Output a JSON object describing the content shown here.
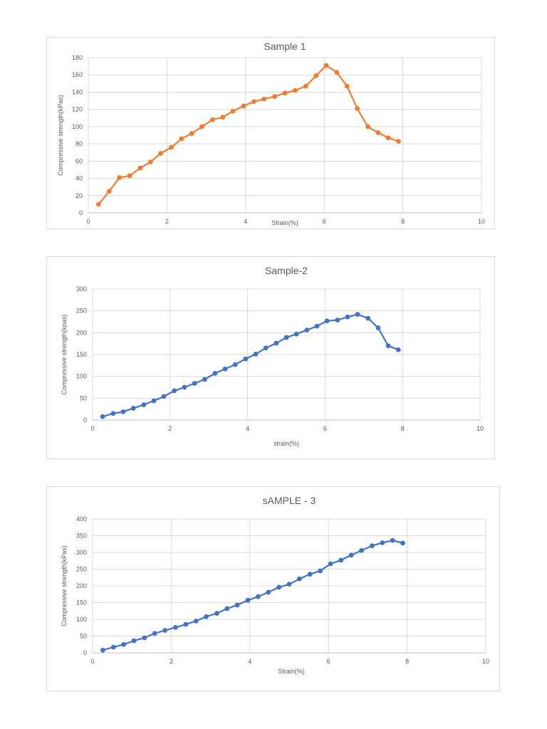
{
  "chart_data": [
    {
      "type": "line",
      "title": "Sample 1",
      "xlabel": "Strain(%)",
      "ylabel": "Compressive strength(kPas)",
      "xlim": [
        0,
        10
      ],
      "ylim": [
        0,
        180
      ],
      "xticks": [
        "0",
        "2",
        "4",
        "6",
        "8",
        "10"
      ],
      "yticks": [
        "0",
        "20",
        "40",
        "60",
        "80",
        "100",
        "120",
        "140",
        "160",
        "180"
      ],
      "grid": true,
      "color": "#ED7D31",
      "series": [
        {
          "x": [
            0.26,
            0.53,
            0.79,
            1.05,
            1.32,
            1.58,
            1.84,
            2.11,
            2.37,
            2.63,
            2.89,
            3.16,
            3.42,
            3.68,
            3.95,
            4.21,
            4.47,
            4.74,
            5.0,
            5.26,
            5.53,
            5.79,
            6.05,
            6.32,
            6.58,
            6.84,
            7.11,
            7.37,
            7.63,
            7.89
          ],
          "values": [
            10,
            25,
            41,
            43,
            52,
            59,
            69,
            76,
            86,
            92,
            100,
            108,
            111,
            118,
            124,
            129,
            132,
            135,
            139,
            142,
            147,
            159,
            171,
            163,
            147,
            121,
            100,
            93,
            87,
            83
          ]
        }
      ]
    },
    {
      "type": "line",
      "title": "Sample-2",
      "xlabel": "strain(%)",
      "ylabel": "Compressive strength(kpas)",
      "xlim": [
        0,
        10
      ],
      "ylim": [
        0,
        300
      ],
      "xticks": [
        "0",
        "2",
        "4",
        "6",
        "8",
        "10"
      ],
      "yticks": [
        "0",
        "50",
        "100",
        "150",
        "200",
        "250",
        "300"
      ],
      "grid": true,
      "color": "#4472C4",
      "series": [
        {
          "x": [
            0.26,
            0.53,
            0.79,
            1.05,
            1.32,
            1.58,
            1.84,
            2.11,
            2.37,
            2.63,
            2.89,
            3.16,
            3.42,
            3.68,
            3.95,
            4.21,
            4.47,
            4.74,
            5.0,
            5.26,
            5.53,
            5.79,
            6.05,
            6.32,
            6.58,
            6.84,
            7.11,
            7.37,
            7.63,
            7.89
          ],
          "values": [
            8,
            15,
            19,
            27,
            35,
            44,
            54,
            67,
            75,
            84,
            93,
            107,
            117,
            127,
            140,
            151,
            165,
            176,
            189,
            197,
            206,
            215,
            227,
            229,
            236,
            242,
            233,
            211,
            170,
            161
          ]
        }
      ]
    },
    {
      "type": "line",
      "title": "sAMPLE - 3",
      "xlabel": "Strain(%)",
      "ylabel": "Compressive strength(kPas)",
      "xlim": [
        0,
        10
      ],
      "ylim": [
        0,
        400
      ],
      "xticks": [
        "0",
        "2",
        "4",
        "6",
        "8",
        "10"
      ],
      "yticks": [
        "0",
        "50",
        "100",
        "150",
        "200",
        "250",
        "300",
        "350",
        "400"
      ],
      "grid": true,
      "color": "#4472C4",
      "series": [
        {
          "x": [
            0.26,
            0.53,
            0.79,
            1.05,
            1.32,
            1.58,
            1.84,
            2.11,
            2.37,
            2.63,
            2.89,
            3.16,
            3.42,
            3.68,
            3.95,
            4.21,
            4.47,
            4.74,
            5.0,
            5.26,
            5.53,
            5.79,
            6.05,
            6.32,
            6.58,
            6.84,
            7.11,
            7.37,
            7.63,
            7.89
          ],
          "values": [
            8,
            17,
            25,
            36,
            45,
            58,
            67,
            76,
            85,
            95,
            108,
            118,
            132,
            143,
            157,
            168,
            181,
            196,
            205,
            221,
            235,
            245,
            266,
            277,
            292,
            306,
            320,
            329,
            336,
            328
          ]
        }
      ]
    }
  ]
}
